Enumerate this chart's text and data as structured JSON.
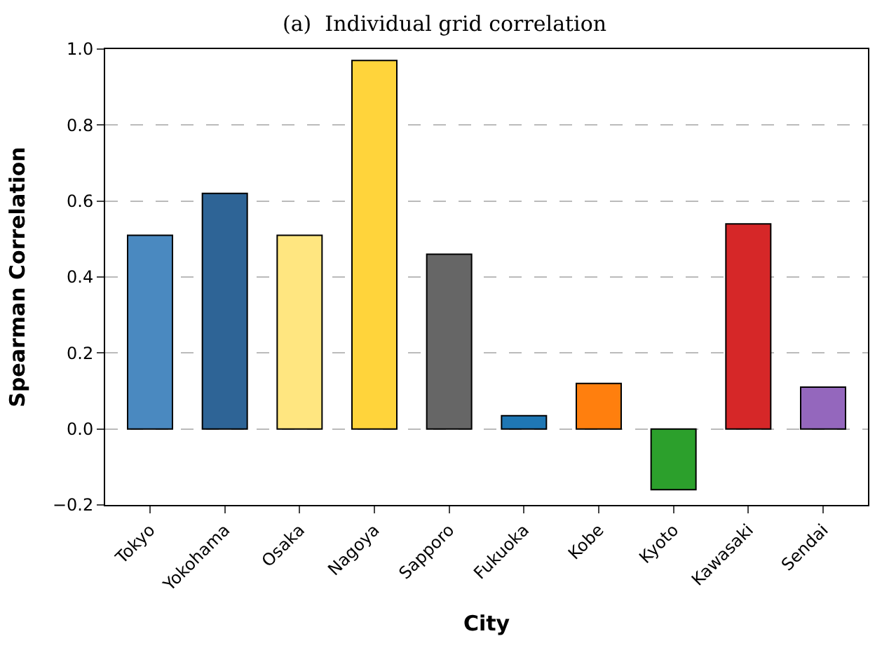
{
  "chart_data": {
    "type": "bar",
    "title": "(a)  Individual grid correlation",
    "xlabel": "City",
    "ylabel": "Spearman Correlation",
    "categories": [
      "Tokyo",
      "Yokohama",
      "Osaka",
      "Nagoya",
      "Sapporo",
      "Fukuoka",
      "Kobe",
      "Kyoto",
      "Kawasaki",
      "Sendai"
    ],
    "values": [
      0.51,
      0.62,
      0.51,
      0.97,
      0.46,
      0.035,
      0.12,
      -0.16,
      0.54,
      0.11
    ],
    "colors": [
      "#4a89c0",
      "#2e6496",
      "#ffe680",
      "#ffd43b",
      "#666666",
      "#1f77b4",
      "#ff7f0e",
      "#2ca02c",
      "#d62728",
      "#9467bd"
    ],
    "ylim": [
      -0.2,
      1.0
    ],
    "yticks": [
      {
        "value": -0.2,
        "label": "−0.2"
      },
      {
        "value": 0,
        "label": "0.0"
      },
      {
        "value": 0.2,
        "label": "0.2"
      },
      {
        "value": 0.4,
        "label": "0.4"
      },
      {
        "value": 0.6,
        "label": "0.6"
      },
      {
        "value": 0.8,
        "label": "0.8"
      },
      {
        "value": 1.0,
        "label": "1.0"
      }
    ],
    "grid": "y"
  }
}
